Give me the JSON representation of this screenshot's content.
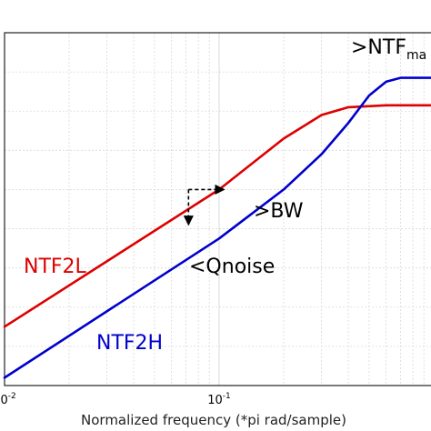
{
  "chart_data": {
    "type": "line",
    "xlabel": "Normalized frequency (*pi rad/sample)",
    "ylabel": "",
    "x_scale": "log",
    "xlim": [
      0.01,
      1
    ],
    "ylim": [
      -9,
      0
    ],
    "grid": true,
    "x_ticks": [
      {
        "value": 0.01,
        "base": "10",
        "exp": "-2"
      },
      {
        "value": 0.1,
        "base": "10",
        "exp": "-1"
      }
    ],
    "series": [
      {
        "name": "NTF2L",
        "color": "#dd0000",
        "x": [
          0.01,
          0.1,
          0.2,
          0.3,
          0.4,
          0.6,
          0.8,
          1.0
        ],
        "y": [
          -7.5,
          -4.0,
          -2.7,
          -2.1,
          -1.9,
          -1.85,
          -1.85,
          -1.85
        ]
      },
      {
        "name": "NTF2H",
        "color": "#0000cc",
        "x": [
          0.01,
          0.1,
          0.2,
          0.3,
          0.4,
          0.5,
          0.6,
          0.7,
          1.0
        ],
        "y": [
          -8.8,
          -5.25,
          -4.0,
          -3.1,
          -2.3,
          -1.6,
          -1.25,
          -1.15,
          -1.15
        ]
      }
    ],
    "labels": {
      "ntf2l": "NTF2L",
      "ntf2h": "NTF2H",
      "bw": ">BW",
      "qnoise": "<Qnoise",
      "ntfmax_main": ">NTF",
      "ntfmax_sub": "ma"
    },
    "annotations": {
      "bw_arrow": {
        "x_from": 0.072,
        "x_to": 0.1055,
        "y": -4.0
      },
      "qnoise_arrow": {
        "x": 0.072,
        "y_from": -4.0,
        "y_to": -4.9
      }
    },
    "colors": {
      "ntf2l": "#dd0000",
      "ntf2h": "#0000cc",
      "arrows": "#000000",
      "grid": "#d9d9d9"
    }
  }
}
